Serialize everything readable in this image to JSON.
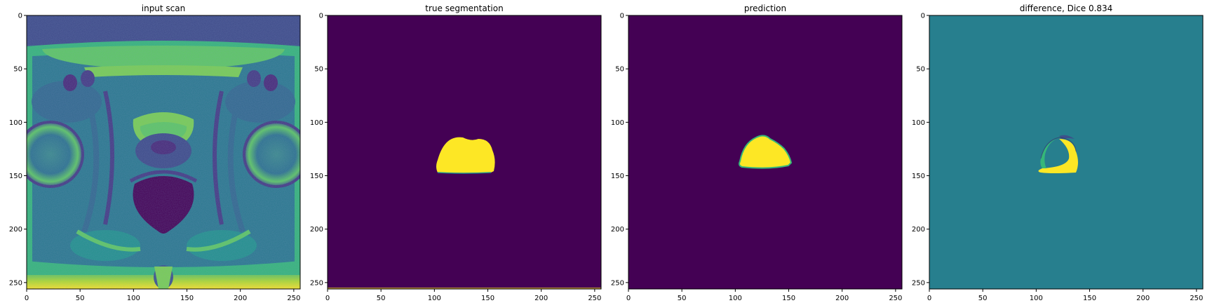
{
  "panels": [
    {
      "id": "input-scan",
      "title": "input scan",
      "xticks": [
        "0",
        "50",
        "100",
        "150",
        "200",
        "250"
      ],
      "yticks": [
        "0",
        "50",
        "100",
        "150",
        "200",
        "250"
      ],
      "image": "mri-slice"
    },
    {
      "id": "true-segmentation",
      "title": "true segmentation",
      "xticks": [
        "0",
        "50",
        "100",
        "150",
        "200",
        "250"
      ],
      "yticks": [
        "0",
        "50",
        "100",
        "150",
        "200",
        "250"
      ],
      "image": "mask-truth"
    },
    {
      "id": "prediction",
      "title": "prediction",
      "xticks": [
        "0",
        "50",
        "100",
        "150",
        "200",
        "250"
      ],
      "yticks": [
        "0",
        "50",
        "100",
        "150",
        "200",
        "250"
      ],
      "image": "mask-prediction"
    },
    {
      "id": "difference",
      "title": "difference, Dice 0.834",
      "xticks": [
        "0",
        "50",
        "100",
        "150",
        "200",
        "250"
      ],
      "yticks": [
        "0",
        "50",
        "100",
        "150",
        "200",
        "250"
      ],
      "image": "mask-difference"
    }
  ],
  "colors": {
    "viridis_dark": "#440154",
    "viridis_mid": "#21918c",
    "viridis_teal": "#277f8e",
    "viridis_green": "#35b779",
    "viridis_yellow": "#fde725",
    "viridis_blue": "#3b528b"
  }
}
